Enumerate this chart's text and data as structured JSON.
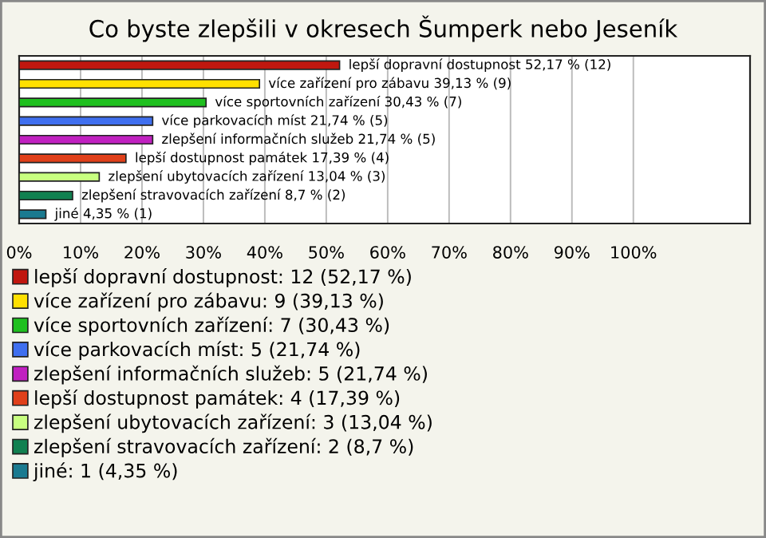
{
  "chart_data": {
    "type": "bar",
    "orientation": "horizontal",
    "title": "Co byste zlepšili v okresech Šumperk nebo Jeseník",
    "categories": [
      null,
      null,
      null,
      null,
      null,
      null,
      null,
      null,
      null
    ],
    "series": [
      {
        "name": "lepší dopravní dostupnost: 12 (52,17 %)",
        "color": "#c0170f",
        "values": [
          52.17,
          null,
          null,
          null,
          null,
          null,
          null,
          null,
          null
        ],
        "value_labels": [
          "lepší dopravní dostupnost 52,17 % (12)",
          null,
          null,
          null,
          null,
          null,
          null,
          null,
          null
        ]
      },
      {
        "name": "více zařízení pro zábavu: 9 (39,13 %)",
        "color": "#ffe000",
        "values": [
          null,
          39.13,
          null,
          null,
          null,
          null,
          null,
          null,
          null
        ],
        "value_labels": [
          null,
          "více zařízení pro zábavu 39,13 % (9)",
          null,
          null,
          null,
          null,
          null,
          null,
          null
        ]
      },
      {
        "name": "více sportovních zařízení: 7 (30,43 %)",
        "color": "#1fc01f",
        "values": [
          null,
          null,
          30.43,
          null,
          null,
          null,
          null,
          null,
          null
        ],
        "value_labels": [
          null,
          null,
          "více sportovních zařízení 30,43 % (7)",
          null,
          null,
          null,
          null,
          null,
          null
        ]
      },
      {
        "name": "více parkovacích míst: 5 (21,74 %)",
        "color": "#3f6fef",
        "values": [
          null,
          null,
          null,
          21.74,
          null,
          null,
          null,
          null,
          null
        ],
        "value_labels": [
          null,
          null,
          null,
          "více parkovacích míst 21,74 % (5)",
          null,
          null,
          null,
          null,
          null
        ]
      },
      {
        "name": "zlepšení informačních služeb: 5 (21,74 %)",
        "color": "#c020c0",
        "values": [
          null,
          null,
          null,
          null,
          21.74,
          null,
          null,
          null,
          null
        ],
        "value_labels": [
          null,
          null,
          null,
          null,
          "zlepšení informačních služeb 21,74 % (5)",
          null,
          null,
          null,
          null
        ]
      },
      {
        "name": "lepší dostupnost památek: 4 (17,39 %)",
        "color": "#e0401a",
        "values": [
          null,
          null,
          null,
          null,
          null,
          17.39,
          null,
          null,
          null
        ],
        "value_labels": [
          null,
          null,
          null,
          null,
          null,
          "lepší dostupnost památek 17,39 % (4)",
          null,
          null,
          null
        ]
      },
      {
        "name": "zlepšení ubytovacích zařízení: 3 (13,04 %)",
        "color": "#c8ff80",
        "values": [
          null,
          null,
          null,
          null,
          null,
          null,
          13.04,
          null,
          null
        ],
        "value_labels": [
          null,
          null,
          null,
          null,
          null,
          null,
          "zlepšení ubytovacích zařízení 13,04 % (3)",
          null,
          null
        ]
      },
      {
        "name": "zlepšení stravovacích zařízení: 2 (8,7 %)",
        "color": "#108050",
        "values": [
          null,
          null,
          null,
          null,
          null,
          null,
          null,
          8.7,
          null
        ],
        "value_labels": [
          null,
          null,
          null,
          null,
          null,
          null,
          null,
          "zlepšení stravovacích zařízení 8,7 % (2)",
          null
        ]
      },
      {
        "name": "jiné: 1 (4,35 %)",
        "color": "#1a7a90",
        "values": [
          null,
          null,
          null,
          null,
          null,
          null,
          null,
          null,
          4.35
        ],
        "value_labels": [
          null,
          null,
          null,
          null,
          null,
          null,
          null,
          null,
          "jiné 4,35 % (1)"
        ]
      }
    ],
    "xlim": [
      0,
      119
    ],
    "xticks": [
      {
        "value": 0,
        "label": "0%"
      },
      {
        "value": 10,
        "label": "10%"
      },
      {
        "value": 20,
        "label": "20%"
      },
      {
        "value": 30,
        "label": "30%"
      },
      {
        "value": 40,
        "label": "40%"
      },
      {
        "value": 50,
        "label": "50%"
      },
      {
        "value": 60,
        "label": "60%"
      },
      {
        "value": 70,
        "label": "70%"
      },
      {
        "value": 80,
        "label": "80%"
      },
      {
        "value": 90,
        "label": "90%"
      },
      {
        "value": 100,
        "label": "100%"
      }
    ],
    "grid": "x",
    "legend": "bottom",
    "tick_labels": "x"
  }
}
